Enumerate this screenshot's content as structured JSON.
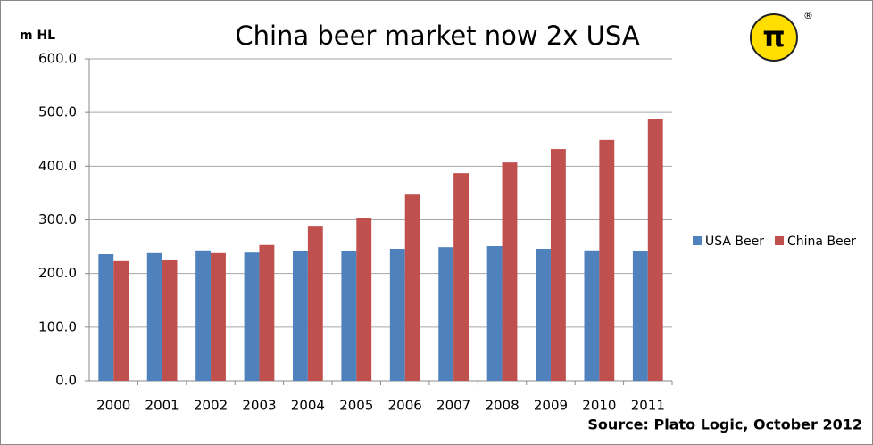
{
  "chart_data": {
    "type": "bar",
    "title": "China beer market now 2x USA",
    "y_label": "m HL",
    "annotation": "Source: Plato Logic, October 2012",
    "logo": "π",
    "logo_mark": "®",
    "categories": [
      "2000",
      "2001",
      "2002",
      "2003",
      "2004",
      "2005",
      "2006",
      "2007",
      "2008",
      "2009",
      "2010",
      "2011"
    ],
    "series": [
      {
        "name": "USA Beer",
        "color": "#4f81bd",
        "values": [
          236,
          238,
          243,
          239,
          241,
          241,
          246,
          249,
          251,
          246,
          243,
          241
        ]
      },
      {
        "name": "China Beer",
        "color": "#c0504d",
        "values": [
          223,
          226,
          238,
          253,
          289,
          304,
          347,
          387,
          407,
          432,
          449,
          487
        ]
      }
    ],
    "ylim": [
      0,
      600
    ],
    "yticks": [
      {
        "value": 0,
        "label": "0.0"
      },
      {
        "value": 100,
        "label": "100.0"
      },
      {
        "value": 200,
        "label": "200.0"
      },
      {
        "value": 300,
        "label": "300.0"
      },
      {
        "value": 400,
        "label": "400.0"
      },
      {
        "value": 500,
        "label": "500.0"
      },
      {
        "value": 600,
        "label": "600.0"
      }
    ],
    "grid": true,
    "legend": "right"
  }
}
